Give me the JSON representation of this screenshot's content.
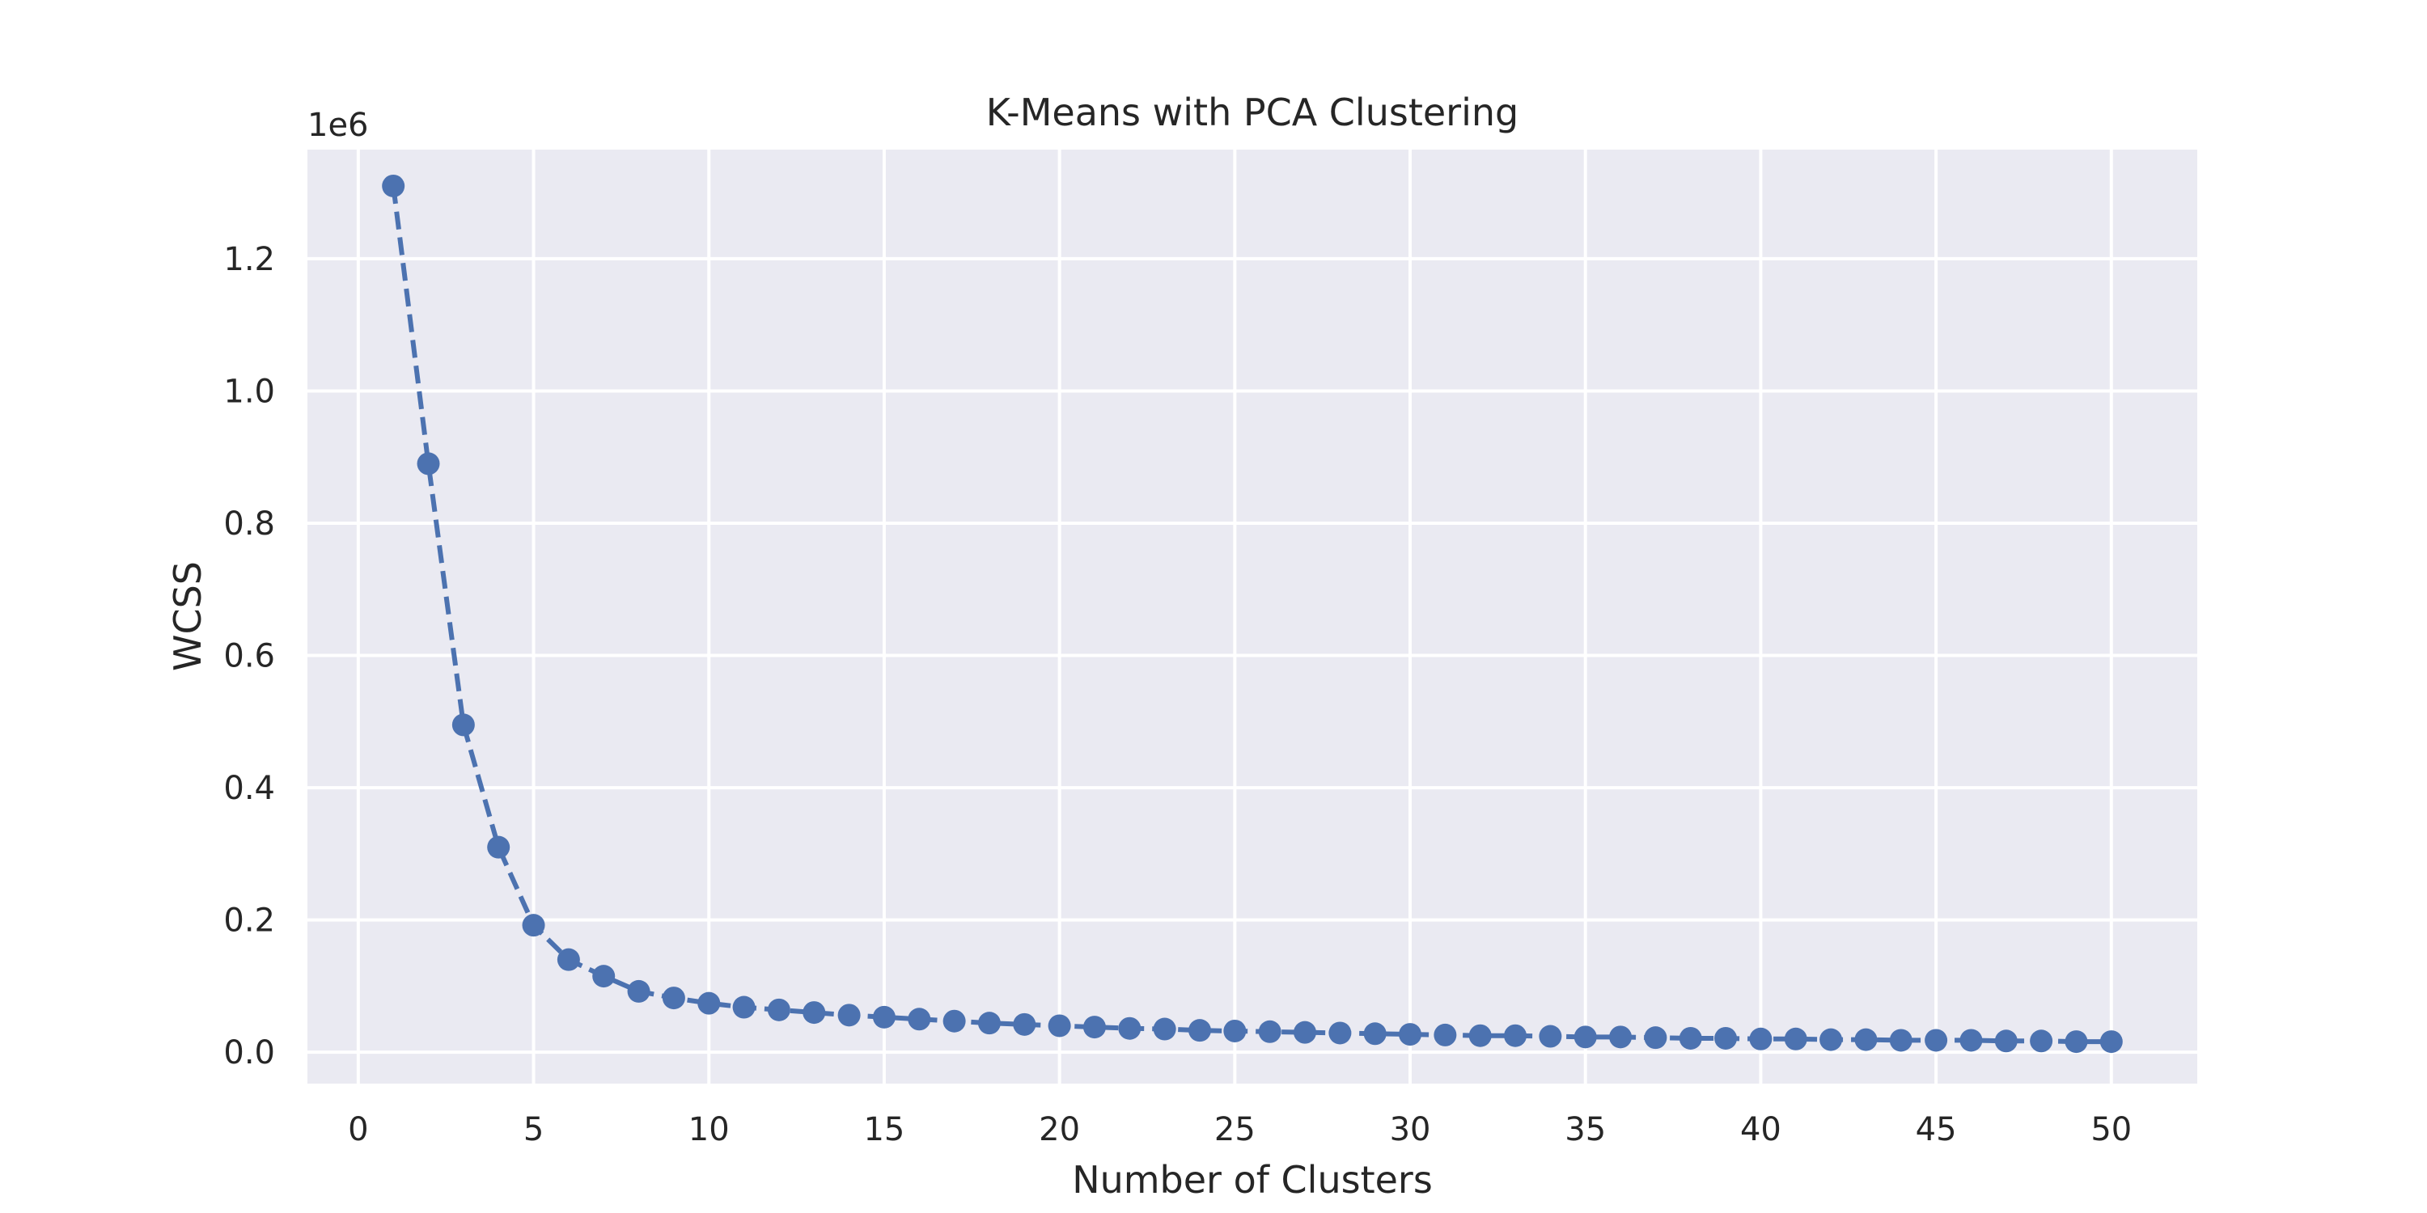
{
  "chart_data": {
    "type": "line",
    "title": "K-Means with PCA Clustering",
    "xlabel": "Number of Clusters",
    "ylabel": "WCSS",
    "y_offset_text": "1e6",
    "y_scale_factor": 1000000,
    "xlim": [
      -1.45,
      52.45
    ],
    "ylim": [
      -0.0475,
      1.365
    ],
    "xticks": [
      0,
      5,
      10,
      15,
      20,
      25,
      30,
      35,
      40,
      45,
      50
    ],
    "yticks": [
      0.0,
      0.2,
      0.4,
      0.6,
      0.8,
      1.0,
      1.2
    ],
    "ytick_labels": [
      "0.0",
      "0.2",
      "0.4",
      "0.6",
      "0.8",
      "1.0",
      "1.2"
    ],
    "grid": true,
    "legend": "none",
    "colors": {
      "series": "#4c72b0",
      "plot_bg": "#eaeaf2",
      "grid": "#ffffff",
      "text": "#262626"
    },
    "series": [
      {
        "line_style": "dashed",
        "marker": "circle",
        "x": [
          1,
          2,
          3,
          4,
          5,
          6,
          7,
          8,
          9,
          10,
          11,
          12,
          13,
          14,
          15,
          16,
          17,
          18,
          19,
          20,
          21,
          22,
          23,
          24,
          25,
          26,
          27,
          28,
          29,
          30,
          31,
          32,
          33,
          34,
          35,
          36,
          37,
          38,
          39,
          40,
          41,
          42,
          43,
          44,
          45,
          46,
          47,
          48,
          49,
          50
        ],
        "values": [
          1.31,
          0.89,
          0.495,
          0.31,
          0.192,
          0.14,
          0.115,
          0.092,
          0.082,
          0.074,
          0.068,
          0.064,
          0.06,
          0.056,
          0.053,
          0.05,
          0.047,
          0.044,
          0.042,
          0.04,
          0.038,
          0.036,
          0.035,
          0.033,
          0.032,
          0.031,
          0.03,
          0.029,
          0.028,
          0.027,
          0.026,
          0.025,
          0.025,
          0.024,
          0.023,
          0.023,
          0.022,
          0.021,
          0.021,
          0.02,
          0.02,
          0.019,
          0.019,
          0.018,
          0.018,
          0.018,
          0.017,
          0.017,
          0.016,
          0.016
        ]
      }
    ]
  }
}
